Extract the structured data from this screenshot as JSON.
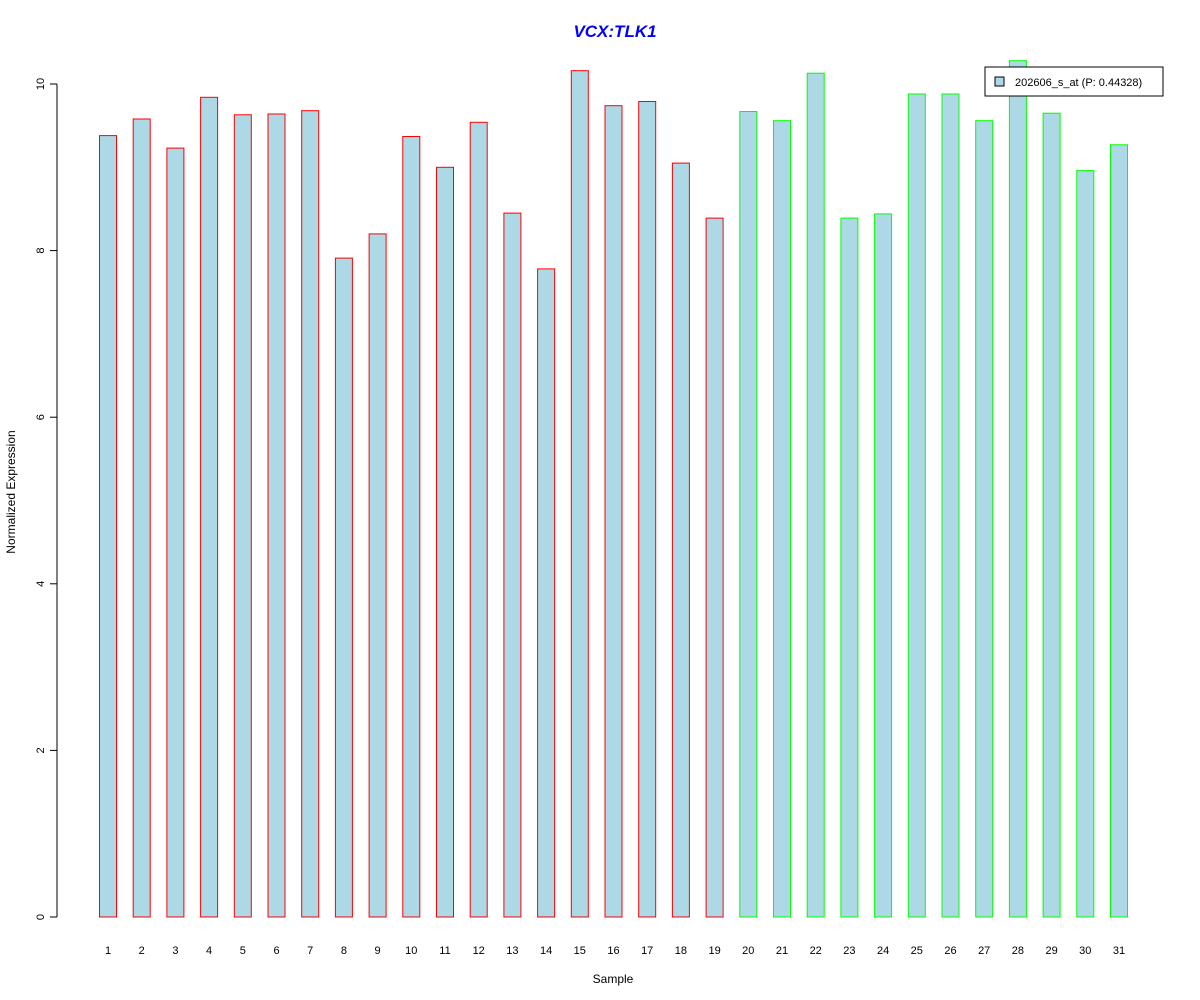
{
  "chart_data": {
    "type": "bar",
    "title": "VCX:TLK1",
    "xlabel": "Sample",
    "ylabel": "Normalized Expression",
    "categories": [
      "1",
      "2",
      "3",
      "4",
      "5",
      "6",
      "7",
      "8",
      "9",
      "10",
      "11",
      "12",
      "13",
      "14",
      "15",
      "16",
      "17",
      "18",
      "19",
      "20",
      "21",
      "22",
      "23",
      "24",
      "25",
      "26",
      "27",
      "28",
      "29",
      "30",
      "31"
    ],
    "series": [
      {
        "name": "202606_s_at (P: 0.44328)",
        "values": [
          9.38,
          9.58,
          9.23,
          9.84,
          9.63,
          9.64,
          9.68,
          7.91,
          8.2,
          9.37,
          9.0,
          9.54,
          8.45,
          7.78,
          10.16,
          9.74,
          9.79,
          9.05,
          8.39,
          9.67,
          9.56,
          10.13,
          8.39,
          8.44,
          9.88,
          9.88,
          9.56,
          10.28,
          9.65,
          8.96,
          9.27
        ]
      }
    ],
    "group_a_count": 19,
    "ylim": [
      0,
      10.28
    ],
    "yticks": [
      0,
      2,
      4,
      6,
      8,
      10
    ],
    "legend_position": "top-right",
    "colors": {
      "bar_fill": "#add8e6",
      "group_a_border": "#ff0000",
      "group_b_border": "#00ff00",
      "title": "#0000ff",
      "axis": "#000000"
    }
  }
}
